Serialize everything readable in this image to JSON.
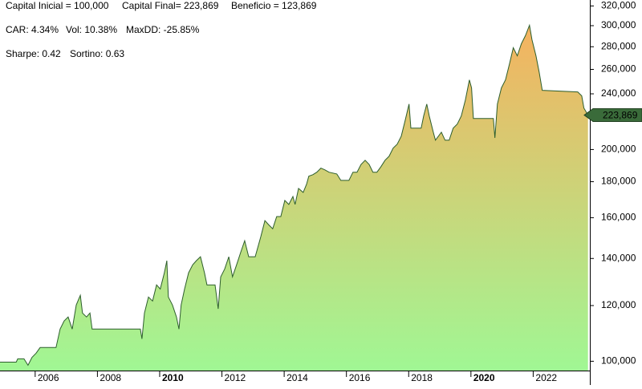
{
  "chart_data": {
    "type": "area",
    "annotations": [
      [
        "Capital Inicial = 100,000",
        "Capital Final= 223,869",
        "Beneficio = 123,869"
      ],
      [
        "CAR: 4.34%",
        "Vol: 10.38%",
        "MaxDD: -25.85%"
      ],
      [
        "Sharpe: 0.42",
        "Sortino: 0.63"
      ]
    ],
    "last_value_label": "223,869",
    "log_scale": true,
    "line_color": "#2d5e2d",
    "fill_colors": [
      "#a0f794",
      "#f5b25f"
    ],
    "xlim": [
      2004.87,
      2023.82
    ],
    "xticks": [
      2006,
      2008,
      2010,
      2012,
      2014,
      2016,
      2018,
      2020,
      2022
    ],
    "ylim": [
      97000,
      326300
    ],
    "yticks": [
      {
        "value": 100000,
        "label": "100,000"
      },
      {
        "value": 120000,
        "label": "120,000"
      },
      {
        "value": 140000,
        "label": "140,000"
      },
      {
        "value": 160000,
        "label": "160,000"
      },
      {
        "value": 180000,
        "label": "180,000"
      },
      {
        "value": 200000,
        "label": "200,000"
      },
      {
        "value": 240000,
        "label": "240,000"
      },
      {
        "value": 260000,
        "label": "260,000"
      },
      {
        "value": 280000,
        "label": "280,000"
      },
      {
        "value": 300000,
        "label": "300,000"
      },
      {
        "value": 320000,
        "label": "320,000"
      }
    ],
    "x": [
      2004.87,
      2005.39,
      2005.44,
      2005.64,
      2005.77,
      2005.9,
      2006.03,
      2006.16,
      2006.67,
      2006.8,
      2006.93,
      2007.06,
      2007.19,
      2007.32,
      2007.45,
      2007.52,
      2007.65,
      2007.76,
      2007.83,
      2009.38,
      2009.43,
      2009.51,
      2009.64,
      2009.77,
      2009.9,
      2010.02,
      2010.15,
      2010.23,
      2010.28,
      2010.41,
      2010.54,
      2010.62,
      2010.69,
      2010.8,
      2010.93,
      2011.06,
      2011.18,
      2011.31,
      2011.44,
      2011.52,
      2011.78,
      2011.88,
      2011.96,
      2012.09,
      2012.22,
      2012.34,
      2012.47,
      2012.6,
      2012.73,
      2012.86,
      2013.07,
      2013.25,
      2013.38,
      2013.5,
      2013.63,
      2013.76,
      2013.89,
      2014.02,
      2014.15,
      2014.28,
      2014.35,
      2014.46,
      2014.61,
      2014.72,
      2014.79,
      2014.92,
      2015.05,
      2015.18,
      2015.31,
      2015.44,
      2015.69,
      2015.82,
      2016.08,
      2016.21,
      2016.34,
      2016.47,
      2016.6,
      2016.73,
      2016.85,
      2016.98,
      2017.11,
      2017.24,
      2017.37,
      2017.5,
      2017.63,
      2017.76,
      2017.89,
      2018.01,
      2018.07,
      2018.4,
      2018.48,
      2018.58,
      2018.66,
      2018.79,
      2018.86,
      2019.05,
      2019.17,
      2019.3,
      2019.43,
      2019.56,
      2019.69,
      2019.82,
      2019.95,
      2020.02,
      2020.08,
      2020.72,
      2020.77,
      2020.85,
      2020.98,
      2021.11,
      2021.24,
      2021.36,
      2021.49,
      2021.62,
      2021.75,
      2021.88,
      2021.96,
      2022.09,
      2022.19,
      2022.29,
      2023.43,
      2023.56,
      2023.63,
      2023.76
    ],
    "values": [
      99700,
      99700,
      100800,
      100800,
      98700,
      101300,
      102700,
      104600,
      104600,
      111100,
      114100,
      115600,
      111100,
      120200,
      124100,
      117100,
      115600,
      117100,
      111100,
      111100,
      107600,
      117100,
      123400,
      121800,
      128400,
      126700,
      133600,
      139000,
      123400,
      120200,
      115600,
      111100,
      120200,
      126700,
      133600,
      137100,
      139000,
      140800,
      133600,
      128400,
      128400,
      118700,
      131800,
      135300,
      140800,
      131800,
      137100,
      142700,
      148400,
      140800,
      140800,
      150400,
      158500,
      156400,
      154300,
      160600,
      160600,
      169300,
      167100,
      171500,
      167100,
      176100,
      173800,
      178500,
      183300,
      184200,
      185700,
      188200,
      187100,
      185700,
      184600,
      180800,
      180800,
      185700,
      185700,
      190500,
      193100,
      190500,
      185700,
      185700,
      189100,
      193100,
      195600,
      200900,
      203500,
      208900,
      220300,
      232100,
      214500,
      214500,
      223200,
      232100,
      223200,
      211700,
      206200,
      211700,
      206200,
      206200,
      214500,
      217400,
      223200,
      235200,
      251200,
      244700,
      221400,
      221400,
      207800,
      232100,
      244700,
      251200,
      264800,
      279100,
      271800,
      282800,
      290300,
      300400,
      286500,
      271800,
      257900,
      242800,
      241500,
      238400,
      229100,
      223869
    ]
  }
}
